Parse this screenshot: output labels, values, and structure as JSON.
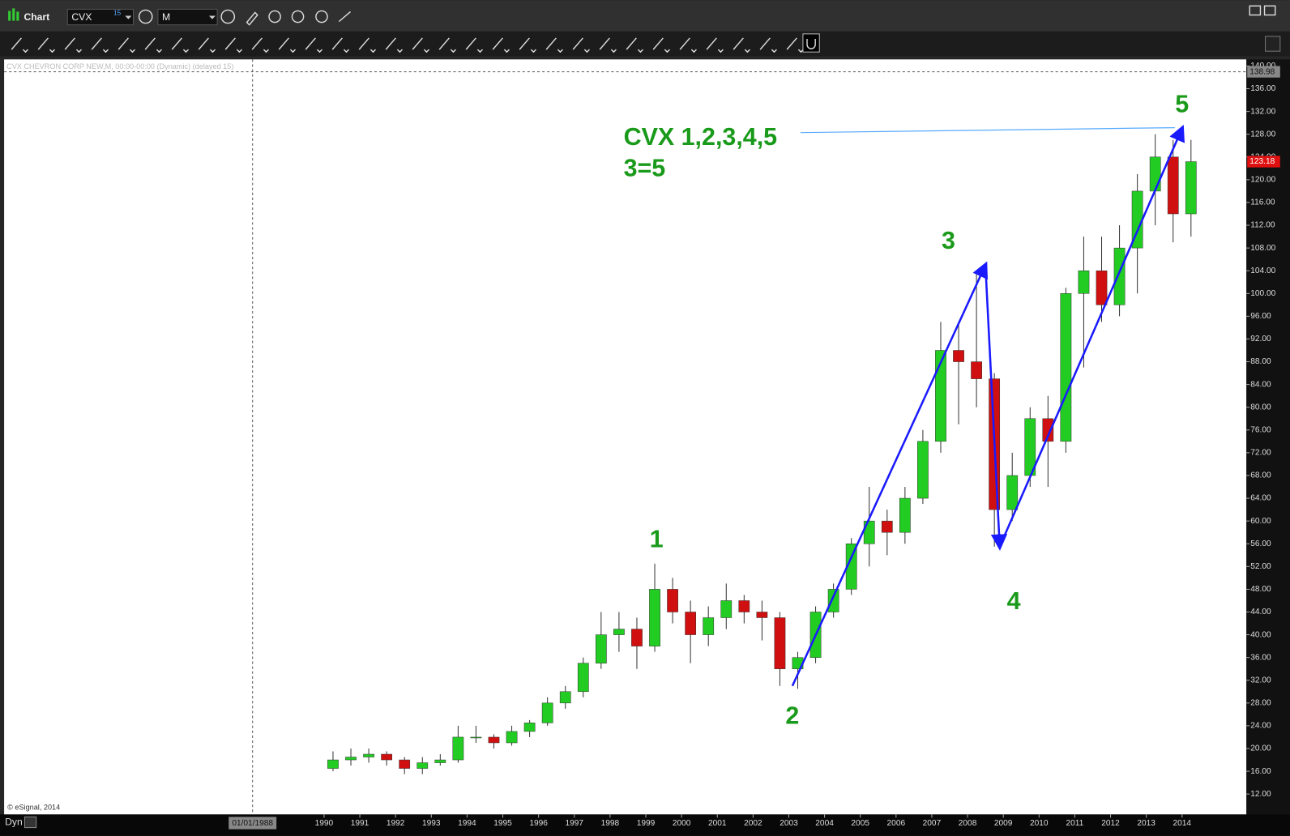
{
  "window": {
    "title": "Chart",
    "symbol": "CVX",
    "symbol_badge": "15",
    "interval": "M",
    "footer": "Dyn"
  },
  "chart_data": {
    "type": "candlestick",
    "header": "CVX  CHEVRON CORP NEW,M, 00:00-00:00 (Dynamic) (delayed 15)",
    "credit": "© eSignal, 2014",
    "annotation": [
      "CVX 1,2,3,4,5",
      "3=5"
    ],
    "x": [
      1990.25,
      1990.75,
      1991.25,
      1991.75,
      1992.25,
      1992.75,
      1993.25,
      1993.75,
      1994.25,
      1994.75,
      1995.25,
      1995.75,
      1996.25,
      1996.75,
      1997.25,
      1997.75,
      1998.25,
      1998.75,
      1999.25,
      1999.75,
      2000.25,
      2000.75,
      2001.25,
      2001.75,
      2002.25,
      2002.75,
      2003.25,
      2003.75,
      2004.25,
      2004.75,
      2005.25,
      2005.75,
      2006.25,
      2006.75,
      2007.25,
      2007.75,
      2008.25,
      2008.75,
      2009.25,
      2009.75,
      2010.25,
      2010.75,
      2011.25,
      2011.75,
      2012.25,
      2012.75,
      2013.25,
      2013.75,
      2014.25
    ],
    "open": [
      16.5,
      18,
      18.5,
      19,
      18,
      16.5,
      17.5,
      18,
      22,
      22,
      21,
      23,
      24.5,
      28,
      30,
      35,
      40,
      41,
      38,
      48,
      44,
      40,
      43,
      46,
      44,
      43,
      34,
      36,
      44,
      48,
      56,
      60,
      58,
      64,
      74,
      90,
      88,
      85,
      62,
      68,
      78,
      74,
      100,
      104,
      98,
      108,
      118,
      124,
      114
    ],
    "high": [
      19.5,
      20,
      20,
      19.5,
      18.5,
      18.5,
      19,
      24,
      24,
      22.5,
      24,
      25,
      29,
      31,
      36,
      44,
      44,
      43,
      52.5,
      50,
      46,
      45,
      49,
      47,
      46,
      44,
      37,
      45,
      49,
      57,
      66,
      62,
      66,
      76,
      95,
      95,
      104,
      86,
      72,
      80,
      82,
      101,
      110,
      110,
      112,
      121,
      128,
      127,
      127
    ],
    "low": [
      16,
      17,
      17.5,
      17,
      15.5,
      15.5,
      17,
      17.5,
      21,
      20,
      20.5,
      22,
      24,
      27,
      29,
      34,
      37,
      34,
      37,
      42,
      35,
      38,
      41,
      42,
      39,
      31,
      30.5,
      35,
      43,
      47,
      52,
      54,
      56,
      63,
      72,
      77,
      80,
      55.5,
      60,
      66,
      66,
      72,
      87,
      95,
      96,
      100,
      112,
      109,
      110
    ],
    "close": [
      18,
      18.5,
      19,
      18,
      16.5,
      17.5,
      18,
      22,
      22,
      21,
      23,
      24.5,
      28,
      30,
      35,
      40,
      41,
      38,
      48,
      44,
      40,
      43,
      46,
      44,
      43,
      34,
      36,
      44,
      48,
      56,
      60,
      58,
      64,
      74,
      90,
      88,
      85,
      62,
      68,
      78,
      74,
      100,
      104,
      98,
      108,
      118,
      124,
      114,
      123.18
    ],
    "up_color": "#22cc22",
    "down_color": "#d01010",
    "waves": {
      "labels": [
        "1",
        "2",
        "3",
        "4",
        "5"
      ],
      "x": [
        1999.3,
        2003.1,
        2008.5,
        2008.9,
        2014.0
      ],
      "y": [
        52.5,
        31,
        105,
        55.5,
        129
      ],
      "color": "#1a1aff",
      "label_color": "#1a9a1a"
    },
    "last_price": 123.18,
    "crosshair_price": 138.98,
    "crosshair_date": "01/01/1988",
    "crosshair_x": 1988.0,
    "xlim": [
      1981.05,
      2015.8
    ],
    "xticks": [
      1990,
      1991,
      1992,
      1993,
      1994,
      1995,
      1996,
      1997,
      1998,
      1999,
      2000,
      2001,
      2002,
      2003,
      2004,
      2005,
      2006,
      2007,
      2008,
      2009,
      2010,
      2011,
      2012,
      2013,
      2014
    ],
    "ylim": [
      10,
      140
    ],
    "yticks": [
      {
        "value": 12,
        "label": "12.00"
      },
      {
        "value": 16,
        "label": "16.00"
      },
      {
        "value": 20,
        "label": "20.00"
      },
      {
        "value": 24,
        "label": "24.00"
      },
      {
        "value": 28,
        "label": "28.00"
      },
      {
        "value": 32,
        "label": "32.00"
      },
      {
        "value": 36,
        "label": "36.00"
      },
      {
        "value": 40,
        "label": "40.00"
      },
      {
        "value": 44,
        "label": "44.00"
      },
      {
        "value": 48,
        "label": "48.00"
      },
      {
        "value": 52,
        "label": "52.00"
      },
      {
        "value": 56,
        "label": "56.00"
      },
      {
        "value": 60,
        "label": "60.00"
      },
      {
        "value": 64,
        "label": "64.00"
      },
      {
        "value": 68,
        "label": "68.00"
      },
      {
        "value": 72,
        "label": "72.00"
      },
      {
        "value": 76,
        "label": "76.00"
      },
      {
        "value": 80,
        "label": "80.00"
      },
      {
        "value": 84,
        "label": "84.00"
      },
      {
        "value": 88,
        "label": "88.00"
      },
      {
        "value": 92,
        "label": "92.00"
      },
      {
        "value": 96,
        "label": "96.00"
      },
      {
        "value": 100,
        "label": "100.00"
      },
      {
        "value": 104,
        "label": "104.00"
      },
      {
        "value": 108,
        "label": "108.00"
      },
      {
        "value": 112,
        "label": "112.00"
      },
      {
        "value": 116,
        "label": "116.00"
      },
      {
        "value": 120,
        "label": "120.00"
      },
      {
        "value": 124,
        "label": "124.00"
      },
      {
        "value": 128,
        "label": "128.00"
      },
      {
        "value": 132,
        "label": "132.00"
      },
      {
        "value": 136,
        "label": "136.00"
      },
      {
        "value": 140,
        "label": "140.00"
      }
    ]
  }
}
